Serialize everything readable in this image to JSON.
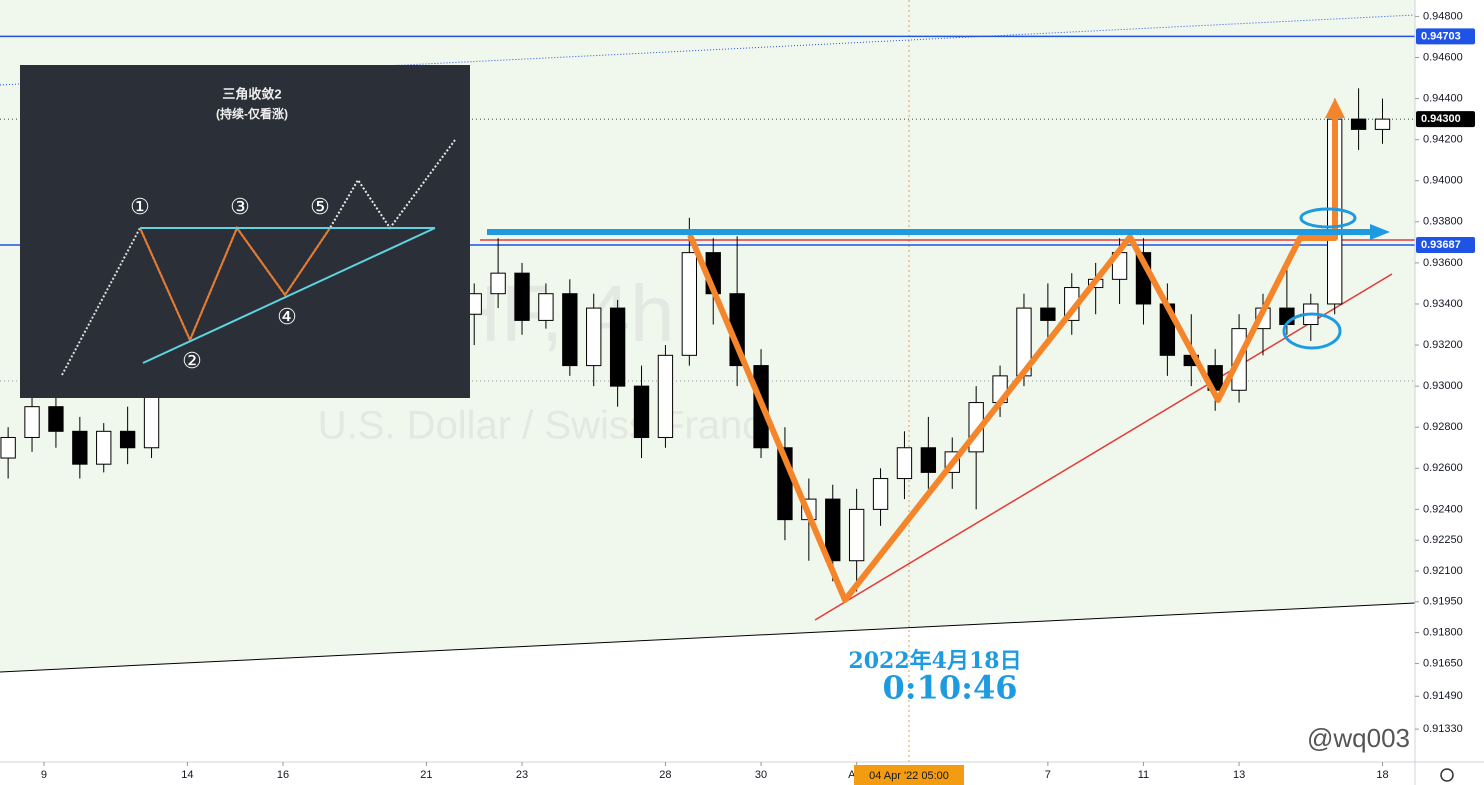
{
  "chart_data": {
    "type": "candlestick",
    "title": "U.S. Dollar / Swiss Franc",
    "subtitle": "CHF, 4h",
    "up_color": "#ffffff",
    "down_color": "#000000",
    "x": [
      -0.75,
      -0.25,
      0.25,
      0.75,
      1.25,
      1.75,
      2.25,
      9.0,
      9.5,
      10.0,
      10.5,
      11.0,
      11.5,
      12.0,
      12.5,
      13.0,
      13.5,
      14.0,
      14.5,
      15.0,
      15.5,
      16.0,
      16.5,
      17.0,
      17.5,
      18.0,
      18.5,
      19.0,
      19.5,
      20.0,
      20.5,
      21.0,
      21.5,
      22.0,
      22.5,
      23.0,
      23.5,
      24.0,
      24.5,
      25.0,
      25.5,
      26.0,
      26.5,
      27.0,
      27.5,
      28.0
    ],
    "open": [
      0.9265,
      0.9275,
      0.929,
      0.9278,
      0.9262,
      0.9278,
      0.927,
      0.9335,
      0.9345,
      0.9355,
      0.9332,
      0.9345,
      0.931,
      0.9338,
      0.93,
      0.9275,
      0.9315,
      0.9365,
      0.9345,
      0.931,
      0.927,
      0.9235,
      0.9245,
      0.9215,
      0.924,
      0.9255,
      0.927,
      0.9258,
      0.9268,
      0.9292,
      0.9305,
      0.9338,
      0.9332,
      0.9348,
      0.9352,
      0.9365,
      0.934,
      0.9315,
      0.931,
      0.9298,
      0.9328,
      0.9338,
      0.933,
      0.934,
      0.943,
      0.9425
    ],
    "high": [
      0.928,
      0.9295,
      0.93,
      0.9285,
      0.9282,
      0.929,
      0.93,
      0.935,
      0.9372,
      0.936,
      0.935,
      0.9352,
      0.9345,
      0.9342,
      0.931,
      0.932,
      0.9382,
      0.9372,
      0.9373,
      0.9318,
      0.928,
      0.9255,
      0.9252,
      0.925,
      0.926,
      0.9278,
      0.9285,
      0.9275,
      0.93,
      0.931,
      0.9345,
      0.935,
      0.9355,
      0.936,
      0.9372,
      0.9372,
      0.935,
      0.9335,
      0.9318,
      0.9335,
      0.9345,
      0.9358,
      0.9345,
      0.944,
      0.9445,
      0.944
    ],
    "low": [
      0.9255,
      0.9268,
      0.927,
      0.9255,
      0.9258,
      0.9262,
      0.9265,
      0.932,
      0.9338,
      0.9325,
      0.9328,
      0.9305,
      0.93,
      0.929,
      0.9265,
      0.927,
      0.931,
      0.933,
      0.93,
      0.9265,
      0.9225,
      0.9215,
      0.9205,
      0.92,
      0.9232,
      0.9245,
      0.925,
      0.925,
      0.924,
      0.9285,
      0.93,
      0.932,
      0.9325,
      0.9335,
      0.934,
      0.933,
      0.9305,
      0.93,
      0.9288,
      0.9292,
      0.9315,
      0.9325,
      0.9322,
      0.9335,
      0.9415,
      0.9418
    ],
    "close": [
      0.9275,
      0.929,
      0.9278,
      0.9262,
      0.9278,
      0.927,
      0.9295,
      0.9345,
      0.9355,
      0.9332,
      0.9345,
      0.931,
      0.9338,
      0.93,
      0.9275,
      0.9315,
      0.9365,
      0.9345,
      0.931,
      0.927,
      0.9235,
      0.9245,
      0.9215,
      0.924,
      0.9255,
      0.927,
      0.9258,
      0.9268,
      0.9292,
      0.9305,
      0.9338,
      0.9332,
      0.9348,
      0.9352,
      0.9365,
      0.934,
      0.9315,
      0.931,
      0.9298,
      0.9328,
      0.9338,
      0.933,
      0.934,
      0.943,
      0.9425,
      0.943
    ],
    "xlim": [
      -0.92,
      28.68
    ],
    "ylim": [
      0.9117,
      0.9488
    ],
    "xticks": [
      {
        "value": 0,
        "label": "9"
      },
      {
        "value": 3,
        "label": "14"
      },
      {
        "value": 5,
        "label": "16"
      },
      {
        "value": 8,
        "label": "21"
      },
      {
        "value": 10,
        "label": "23"
      },
      {
        "value": 13,
        "label": "28"
      },
      {
        "value": 15,
        "label": "30"
      },
      {
        "value": 17,
        "label": "Apr"
      },
      {
        "value": 21,
        "label": "7"
      },
      {
        "value": 23,
        "label": "11"
      },
      {
        "value": 25,
        "label": "13"
      },
      {
        "value": 28,
        "label": "18"
      }
    ],
    "yticks": [
      {
        "value": 0.948,
        "label": "0.94800"
      },
      {
        "value": 0.946,
        "label": "0.94600"
      },
      {
        "value": 0.944,
        "label": "0.94400"
      },
      {
        "value": 0.942,
        "label": "0.94200"
      },
      {
        "value": 0.94,
        "label": "0.94000"
      },
      {
        "value": 0.938,
        "label": "0.93800"
      },
      {
        "value": 0.936,
        "label": "0.93600"
      },
      {
        "value": 0.934,
        "label": "0.93400"
      },
      {
        "value": 0.932,
        "label": "0.93200"
      },
      {
        "value": 0.93,
        "label": "0.93000"
      },
      {
        "value": 0.928,
        "label": "0.92800"
      },
      {
        "value": 0.926,
        "label": "0.92600"
      },
      {
        "value": 0.924,
        "label": "0.92400"
      },
      {
        "value": 0.9225,
        "label": "0.92250"
      },
      {
        "value": 0.921,
        "label": "0.92100"
      },
      {
        "value": 0.9195,
        "label": "0.91950"
      },
      {
        "value": 0.918,
        "label": "0.91800"
      },
      {
        "value": 0.9165,
        "label": "0.91650"
      },
      {
        "value": 0.9149,
        "label": "0.91490"
      },
      {
        "value": 0.9133,
        "label": "0.91330"
      }
    ],
    "price_lines": [
      {
        "value": 0.94703,
        "label": "0.94703",
        "color": "#1e53e5"
      },
      {
        "value": 0.943,
        "label": "0.94300",
        "color": "#000000"
      },
      {
        "value": 0.93687,
        "label": "0.93687",
        "color": "#1e53e5"
      }
    ]
  },
  "annotations": {
    "date_stamp": "2022年4月18日",
    "time_stamp": "0:10:46",
    "crosshair_label": "04 Apr '22   05:00",
    "watermark": "@wq003"
  },
  "inset": {
    "title": "三角收敛2",
    "subtitle": "(持续-仅看涨)",
    "points": [
      "①",
      "②",
      "③",
      "④",
      "⑤"
    ]
  }
}
